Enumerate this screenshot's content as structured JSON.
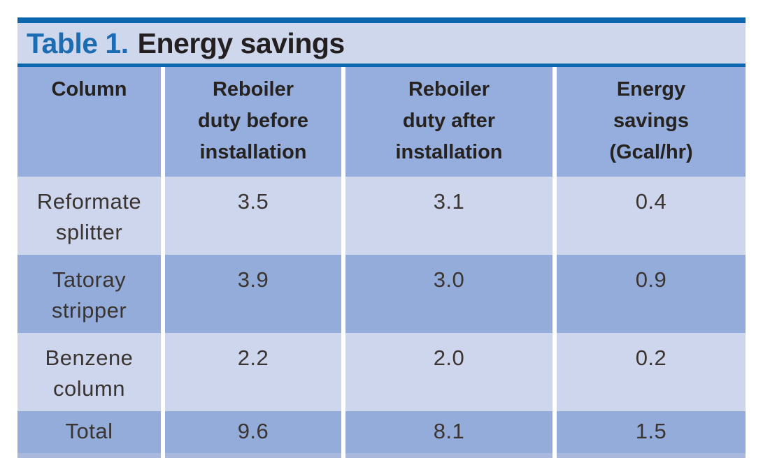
{
  "title": {
    "prefix": "Table 1.",
    "text": "Energy savings"
  },
  "table": {
    "headers": [
      "Column",
      "Reboiler\nduty before\ninstallation",
      "Reboiler\nduty after\ninstallation",
      "Energy\nsavings\n(Gcal/hr)"
    ],
    "rows": [
      {
        "cells": [
          "Reformate\nsplitter",
          "3.5",
          "3.1",
          "0.4"
        ]
      },
      {
        "cells": [
          "Tatoray\nstripper",
          "3.9",
          "3.0",
          "0.9"
        ]
      },
      {
        "cells": [
          "Benzene\ncolumn",
          "2.2",
          "2.0",
          "0.2"
        ]
      },
      {
        "cells": [
          "Total",
          "9.6",
          "8.1",
          "1.5"
        ]
      }
    ]
  },
  "chart_data": {
    "type": "table",
    "title": "Table 1. Energy savings",
    "columns": [
      "Column",
      "Reboiler duty before installation",
      "Reboiler duty after installation",
      "Energy savings (Gcal/hr)"
    ],
    "rows": [
      [
        "Reformate splitter",
        3.5,
        3.1,
        0.4
      ],
      [
        "Tatoray stripper",
        3.9,
        3.0,
        0.9
      ],
      [
        "Benzene column",
        2.2,
        2.0,
        0.2
      ],
      [
        "Total",
        9.6,
        8.1,
        1.5
      ]
    ]
  },
  "colors": {
    "accent_dark_blue": "#0d67ae",
    "title_blue": "#1b6cb3",
    "title_bg": "#ced7ec",
    "header_bg": "#95aedd",
    "row_medium_bg": "#93acda",
    "row_light_bg": "#cdd6ec",
    "total_bottom_strip": "#a9b8dc",
    "header_text": "#262220",
    "body_text": "#3a3432"
  }
}
